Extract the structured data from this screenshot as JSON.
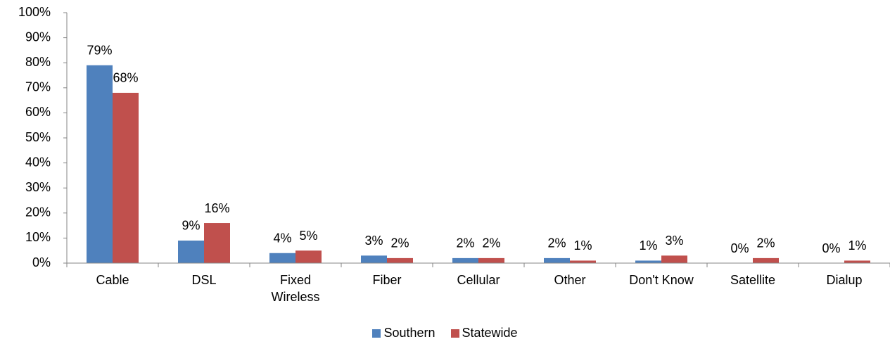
{
  "chart_data": {
    "type": "bar",
    "categories": [
      "Cable",
      "DSL",
      "Fixed Wireless",
      "Fiber",
      "Cellular",
      "Other",
      "Don't Know",
      "Satellite",
      "Dialup"
    ],
    "series": [
      {
        "name": "Southern",
        "color": "#4f81bd",
        "values": [
          79,
          9,
          4,
          3,
          2,
          2,
          1,
          0,
          0
        ],
        "value_labels": [
          "79%",
          "9%",
          "4%",
          "3%",
          "2%",
          "2%",
          "1%",
          "0%",
          "0%"
        ]
      },
      {
        "name": "Statewide",
        "color": "#c0504d",
        "values": [
          68,
          16,
          5,
          2,
          2,
          1,
          3,
          2,
          1
        ],
        "value_labels": [
          "68%",
          "16%",
          "5%",
          "2%",
          "2%",
          "1%",
          "3%",
          "2%",
          "1%"
        ]
      }
    ],
    "ylim": [
      0,
      100
    ],
    "yticks": [
      {
        "value": 0,
        "label": "0%"
      },
      {
        "value": 10,
        "label": "10%"
      },
      {
        "value": 20,
        "label": "20%"
      },
      {
        "value": 30,
        "label": "30%"
      },
      {
        "value": 40,
        "label": "40%"
      },
      {
        "value": 50,
        "label": "50%"
      },
      {
        "value": 60,
        "label": "60%"
      },
      {
        "value": 70,
        "label": "70%"
      },
      {
        "value": 80,
        "label": "80%"
      },
      {
        "value": 90,
        "label": "90%"
      },
      {
        "value": 100,
        "label": "100%"
      }
    ],
    "grid": false,
    "legend": "bottom"
  }
}
